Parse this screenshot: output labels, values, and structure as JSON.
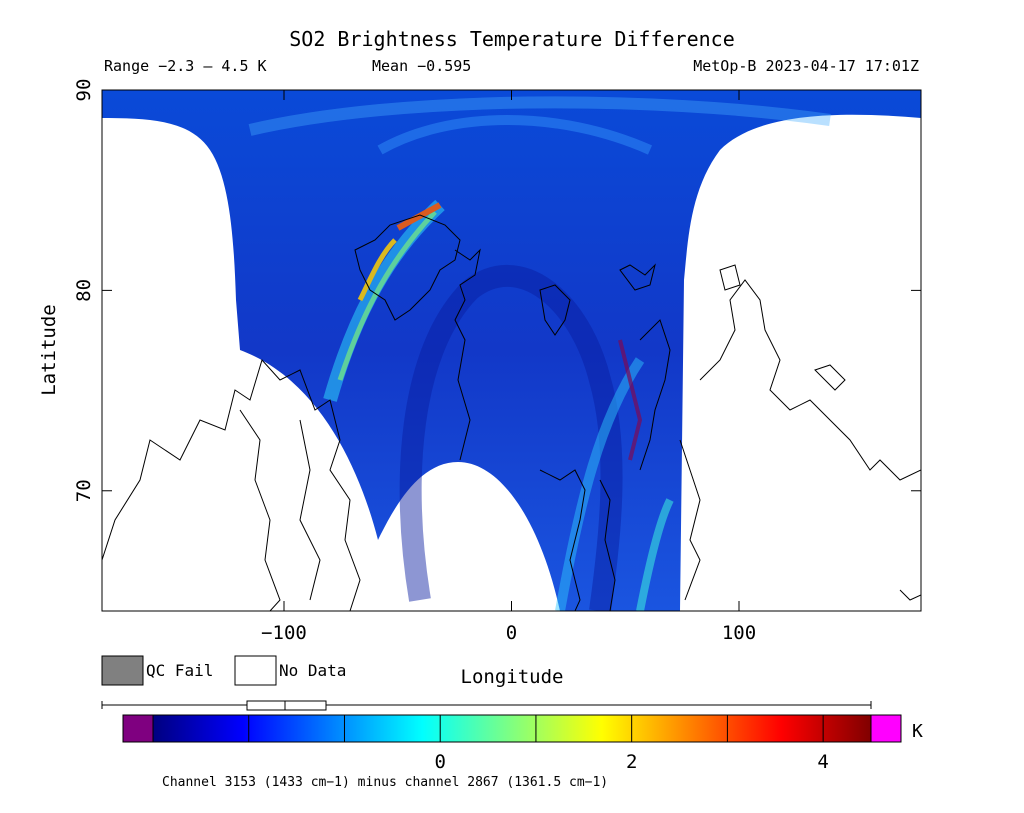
{
  "chart_data": {
    "type": "heatmap",
    "title": "SO2 Brightness Temperature Difference",
    "range_text": "Range −2.3 – 4.5 K",
    "mean_text": "Mean −0.595",
    "satellite_time": "MetOp-B 2023-04-17 17:01Z",
    "xlabel": "Longitude",
    "ylabel": "Latitude",
    "xlim": [
      -180,
      180
    ],
    "ylim": [
      64,
      90
    ],
    "x_ticks": [
      -100,
      0,
      100
    ],
    "x_tick_labels": [
      "−100",
      "0",
      "100"
    ],
    "y_ticks": [
      70,
      80,
      90
    ],
    "y_tick_labels": [
      "70",
      "80",
      "90"
    ],
    "range_min": -2.3,
    "range_max": 4.5,
    "mean": -0.595,
    "legend": {
      "qc_fail_label": "QC Fail",
      "no_data_label": "No Data",
      "qc_fail_color": "#808080",
      "no_data_color": "#ffffff"
    },
    "colorbar": {
      "unit": "K",
      "min": -3.0,
      "max": 4.5,
      "ticks": [
        0,
        2,
        4
      ],
      "tick_labels": [
        "0",
        "2",
        "4"
      ],
      "under_color": "#7f0080",
      "over_color": "#ff00ff",
      "colors": [
        "#000080",
        "#0000ff",
        "#0080ff",
        "#00ffff",
        "#80ff80",
        "#ffff00",
        "#ff8000",
        "#ff0000",
        "#800000"
      ],
      "caption": "Channel 3153 (1433 cm−1) minus channel 2867 (1361.5 cm−1)"
    }
  }
}
